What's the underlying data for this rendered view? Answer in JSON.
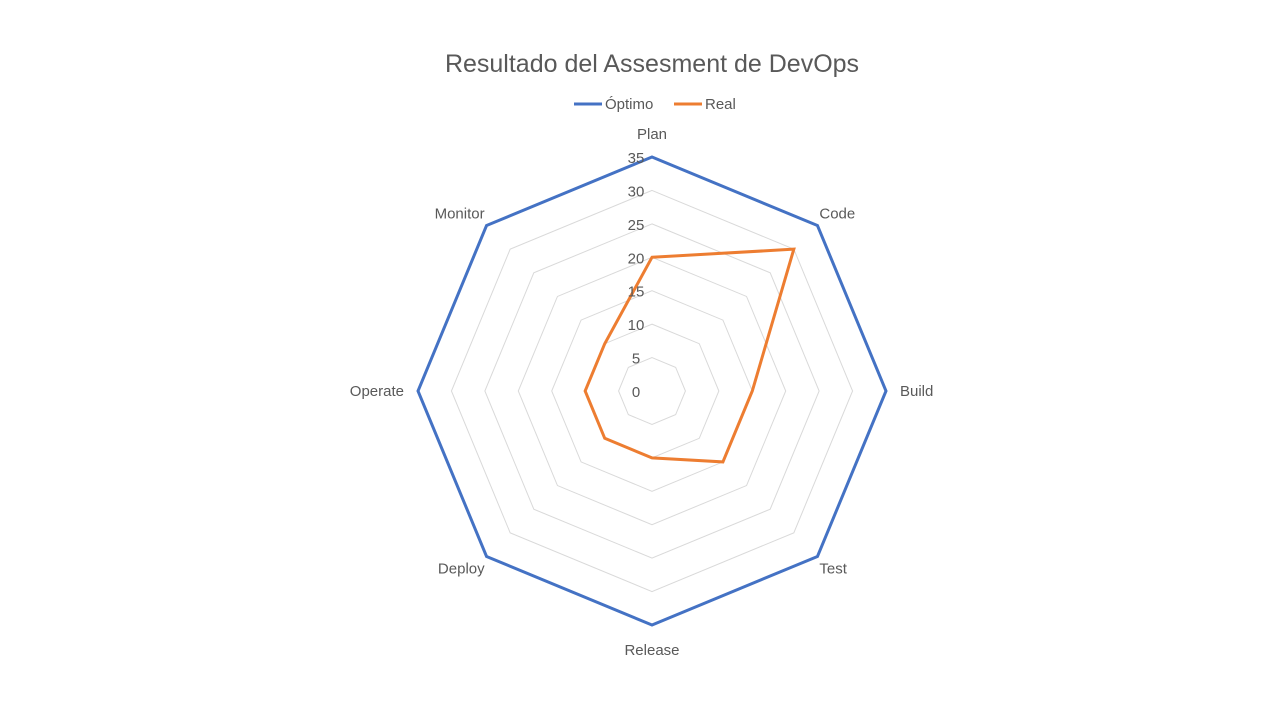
{
  "chart_data": {
    "type": "radar",
    "title": "Resultado del Assesment de DevOps",
    "categories": [
      "Plan",
      "Code",
      "Build",
      "Test",
      "Release",
      "Deploy",
      "Operate",
      "Monitor"
    ],
    "series": [
      {
        "name": "Óptimo",
        "color": "#4472C4",
        "values": [
          35,
          35,
          35,
          35,
          35,
          35,
          35,
          35
        ]
      },
      {
        "name": "Real",
        "color": "#ED7D31",
        "values": [
          20,
          30,
          15,
          15,
          10,
          10,
          10,
          10
        ]
      }
    ],
    "rmin": 0,
    "rmax": 35,
    "ticks": [
      "0",
      "5",
      "10",
      "15",
      "20",
      "25",
      "30",
      "35"
    ],
    "grid": true,
    "legend_position": "top"
  }
}
